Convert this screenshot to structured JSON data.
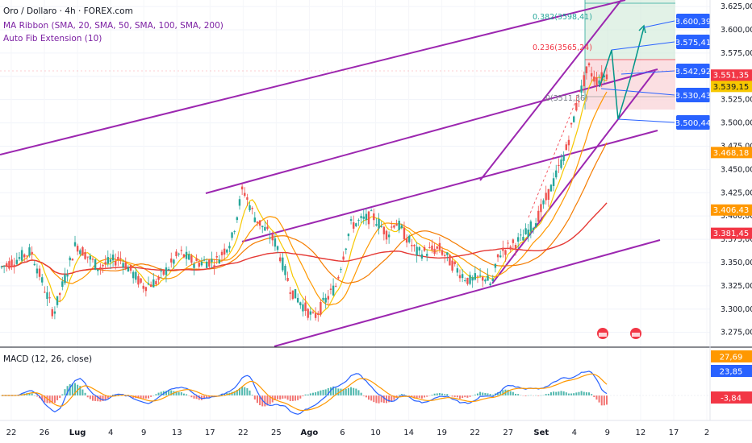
{
  "legend": {
    "title": "Oro / Dollaro · 4h · FOREX.com",
    "ma_ribbon": "MA Ribbon (SMA, 20, SMA, 50, SMA, 100, SMA, 200)",
    "fib": "Auto Fib Extension (10)",
    "macd": "MACD (12, 26, close)"
  },
  "chart_data": {
    "type": "candlestick",
    "y_ticks": [
      "3.625,00",
      "3.600,00",
      "3.575,00",
      "3.550,00",
      "3.525,00",
      "3.500,00",
      "3.475,00",
      "3.450,00",
      "3.425,00",
      "3.400,00",
      "3.375,00",
      "3.350,00",
      "3.325,00",
      "3.300,00",
      "3.275,00"
    ],
    "y_values": [
      3625,
      3600,
      3575,
      3550,
      3525,
      3500,
      3475,
      3450,
      3425,
      3400,
      3375,
      3350,
      3325,
      3300,
      3275
    ],
    "ylim": [
      3260,
      3632
    ],
    "x_ticks": [
      {
        "label": "22",
        "bold": false
      },
      {
        "label": "26",
        "bold": false
      },
      {
        "label": "Lug",
        "bold": true
      },
      {
        "label": "4",
        "bold": false
      },
      {
        "label": "9",
        "bold": false
      },
      {
        "label": "13",
        "bold": false
      },
      {
        "label": "17",
        "bold": false
      },
      {
        "label": "22",
        "bold": false
      },
      {
        "label": "25",
        "bold": false
      },
      {
        "label": "Ago",
        "bold": true
      },
      {
        "label": "6",
        "bold": false
      },
      {
        "label": "10",
        "bold": false
      },
      {
        "label": "14",
        "bold": false
      },
      {
        "label": "19",
        "bold": false
      },
      {
        "label": "22",
        "bold": false
      },
      {
        "label": "27",
        "bold": false
      },
      {
        "label": "Set",
        "bold": true
      },
      {
        "label": "4",
        "bold": false
      },
      {
        "label": "9",
        "bold": false
      },
      {
        "label": "12",
        "bold": false
      },
      {
        "label": "17",
        "bold": false
      },
      {
        "label": "2",
        "bold": false
      }
    ],
    "price_path": [
      [
        0,
        3345
      ],
      [
        0.04,
        3362
      ],
      [
        0.07,
        3295
      ],
      [
        0.1,
        3370
      ],
      [
        0.13,
        3345
      ],
      [
        0.16,
        3355
      ],
      [
        0.19,
        3325
      ],
      [
        0.21,
        3330
      ],
      [
        0.24,
        3360
      ],
      [
        0.26,
        3350
      ],
      [
        0.29,
        3352
      ],
      [
        0.31,
        3375
      ],
      [
        0.325,
        3430
      ],
      [
        0.34,
        3400
      ],
      [
        0.37,
        3370
      ],
      [
        0.39,
        3320
      ],
      [
        0.42,
        3290
      ],
      [
        0.45,
        3325
      ],
      [
        0.47,
        3390
      ],
      [
        0.5,
        3400
      ],
      [
        0.52,
        3380
      ],
      [
        0.53,
        3395
      ],
      [
        0.56,
        3360
      ],
      [
        0.59,
        3365
      ],
      [
        0.61,
        3345
      ],
      [
        0.63,
        3330
      ],
      [
        0.65,
        3335
      ],
      [
        0.66,
        3325
      ],
      [
        0.67,
        3360
      ],
      [
        0.7,
        3375
      ],
      [
        0.72,
        3395
      ],
      [
        0.74,
        3430
      ],
      [
        0.76,
        3470
      ],
      [
        0.775,
        3520
      ],
      [
        0.79,
        3560
      ],
      [
        0.8,
        3545
      ],
      [
        0.815,
        3552
      ]
    ],
    "annotations": {
      "fib_levels": [
        "0.382(3598,41)",
        "0.236(3565,24)",
        "0(3511,36)"
      ],
      "projection_labels": [
        "3.600,39",
        "3.575,41",
        "3.542,92",
        "3.530,43",
        "3.500,44"
      ],
      "axis_tags": [
        {
          "text": "3.551,35",
          "sub": "03:34:39",
          "color": "#f23645",
          "value": 3551.35
        },
        {
          "text": "3.539,15",
          "color": "#f7c800",
          "value": 3539.15
        },
        {
          "text": "3.468,18",
          "color": "#ff9800",
          "value": 3468.18
        },
        {
          "text": "3.406,43",
          "color": "#ff9800",
          "value": 3406.43
        },
        {
          "text": "3.381,45",
          "color": "#f23645",
          "value": 3381.45
        }
      ],
      "macd_tags": [
        {
          "text": "27,69",
          "color": "#ff9800"
        },
        {
          "text": "23,85",
          "color": "#2962ff"
        },
        {
          "text": "-3,84",
          "color": "#f23645"
        }
      ]
    }
  }
}
